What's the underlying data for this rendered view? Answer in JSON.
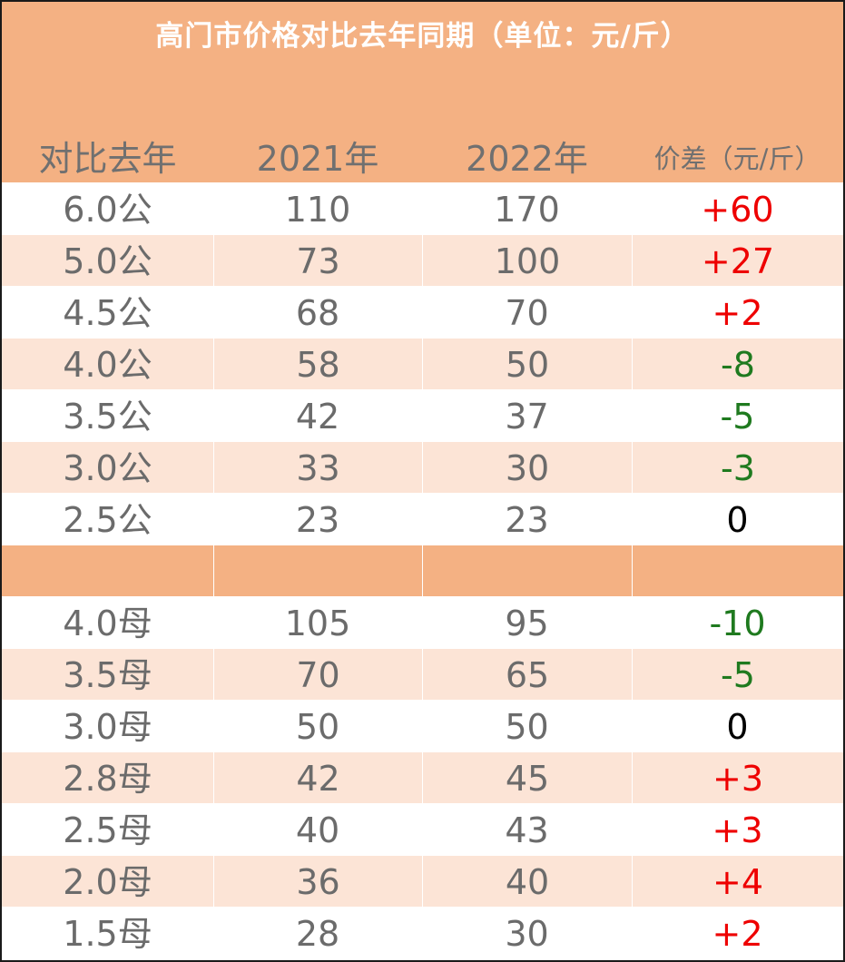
{
  "title": "高门市价格对比去年同期（单位：元/斤）",
  "columns": [
    "对比去年",
    "2021年",
    "2022年",
    "价差（元/斤）"
  ],
  "colors": {
    "header_bg": "#f4b183",
    "row_alt_bg": "#fce4d6",
    "row_bg": "#ffffff",
    "positive": "#ee0000",
    "negative": "#1f7a1f",
    "zero": "#000000",
    "text": "#6b6b6b"
  },
  "male_rows": [
    {
      "spec": "6.0公",
      "y2021": "110",
      "y2022": "170",
      "diff": "+60"
    },
    {
      "spec": "5.0公",
      "y2021": "73",
      "y2022": "100",
      "diff": "+27"
    },
    {
      "spec": "4.5公",
      "y2021": "68",
      "y2022": "70",
      "diff": "+2"
    },
    {
      "spec": "4.0公",
      "y2021": "58",
      "y2022": "50",
      "diff": "-8"
    },
    {
      "spec": "3.5公",
      "y2021": "42",
      "y2022": "37",
      "diff": "-5"
    },
    {
      "spec": "3.0公",
      "y2021": "33",
      "y2022": "30",
      "diff": "-3"
    },
    {
      "spec": "2.5公",
      "y2021": "23",
      "y2022": "23",
      "diff": "0"
    }
  ],
  "female_rows": [
    {
      "spec": "4.0母",
      "y2021": "105",
      "y2022": "95",
      "diff": "-10"
    },
    {
      "spec": "3.5母",
      "y2021": "70",
      "y2022": "65",
      "diff": "-5"
    },
    {
      "spec": "3.0母",
      "y2021": "50",
      "y2022": "50",
      "diff": "0"
    },
    {
      "spec": "2.8母",
      "y2021": "42",
      "y2022": "45",
      "diff": "+3"
    },
    {
      "spec": "2.5母",
      "y2021": "40",
      "y2022": "43",
      "diff": "+3"
    },
    {
      "spec": "2.0母",
      "y2021": "36",
      "y2022": "40",
      "diff": "+4"
    },
    {
      "spec": "1.5母",
      "y2021": "28",
      "y2022": "30",
      "diff": "+2"
    }
  ]
}
